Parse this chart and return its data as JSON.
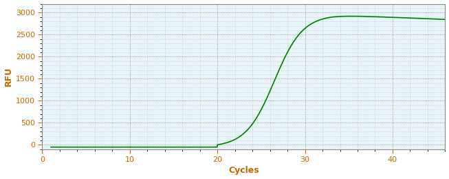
{
  "xlabel": "Cycles",
  "ylabel": "RFU",
  "line_color": "#008000",
  "line_width": 1.2,
  "xlim": [
    0,
    46
  ],
  "ylim": [
    -100,
    3200
  ],
  "xticks": [
    0,
    10,
    20,
    30,
    40
  ],
  "yticks": [
    0,
    500,
    1000,
    1500,
    2000,
    2500,
    3000
  ],
  "background_color": "#ffffff",
  "plot_bg_color": "#e8f4f8",
  "grid_color": "#555555",
  "tick_color": "#cc6600",
  "label_color": "#cc6600",
  "sigmoid_L": 3000,
  "sigmoid_k": 0.62,
  "sigmoid_x0": 26.5,
  "x_start": 1,
  "x_end": 46,
  "plateau_peak_x": 33,
  "plateau_drop_rate": 8
}
